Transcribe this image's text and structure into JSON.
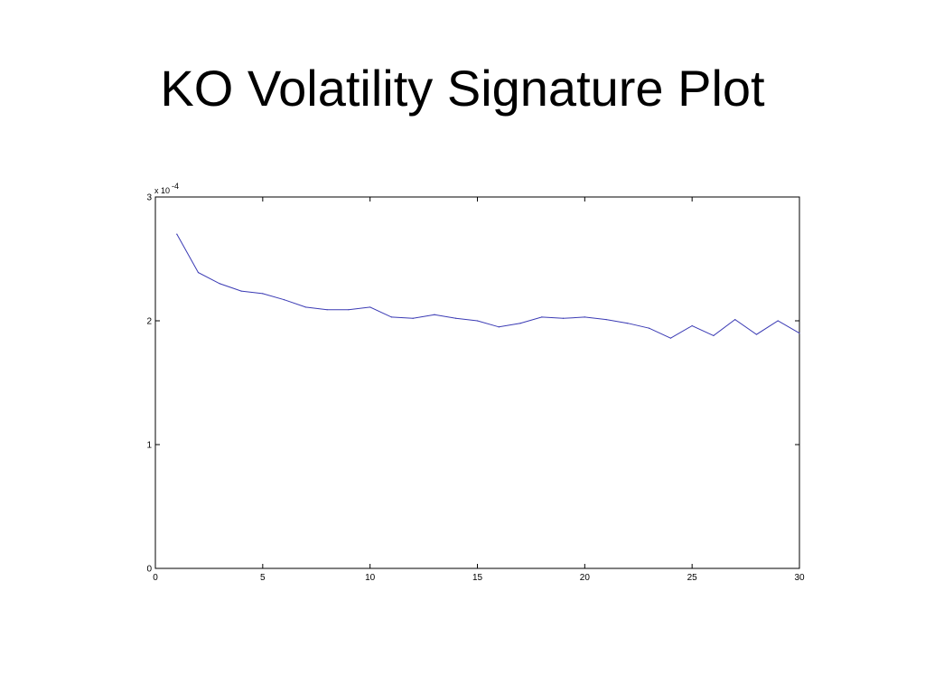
{
  "slide": {
    "title": "KO Volatility Signature Plot"
  },
  "chart_data": {
    "type": "line",
    "title": "",
    "xlabel": "",
    "ylabel": "",
    "y_scale_label": {
      "base": "x 10",
      "exponent": "-4"
    },
    "xlim": [
      0,
      30
    ],
    "ylim": [
      0,
      3
    ],
    "x_ticks": [
      0,
      5,
      10,
      15,
      20,
      25,
      30
    ],
    "y_ticks": [
      0,
      1,
      2,
      3
    ],
    "grid": false,
    "line_color": "#3a3ab4",
    "series": [
      {
        "x": [
          1,
          2,
          3,
          4,
          5,
          6,
          7,
          8,
          9,
          10,
          11,
          12,
          13,
          14,
          15,
          16,
          17,
          18,
          19,
          20,
          21,
          22,
          23,
          24,
          25,
          26,
          27,
          28,
          29,
          30
        ],
        "y": [
          2.7,
          2.39,
          2.3,
          2.24,
          2.22,
          2.17,
          2.11,
          2.09,
          2.09,
          2.11,
          2.03,
          2.02,
          2.05,
          2.02,
          2.0,
          1.95,
          1.98,
          2.03,
          2.02,
          2.03,
          2.01,
          1.98,
          1.94,
          1.86,
          1.96,
          1.88,
          2.01,
          1.89,
          2.0,
          1.9
        ]
      }
    ]
  }
}
